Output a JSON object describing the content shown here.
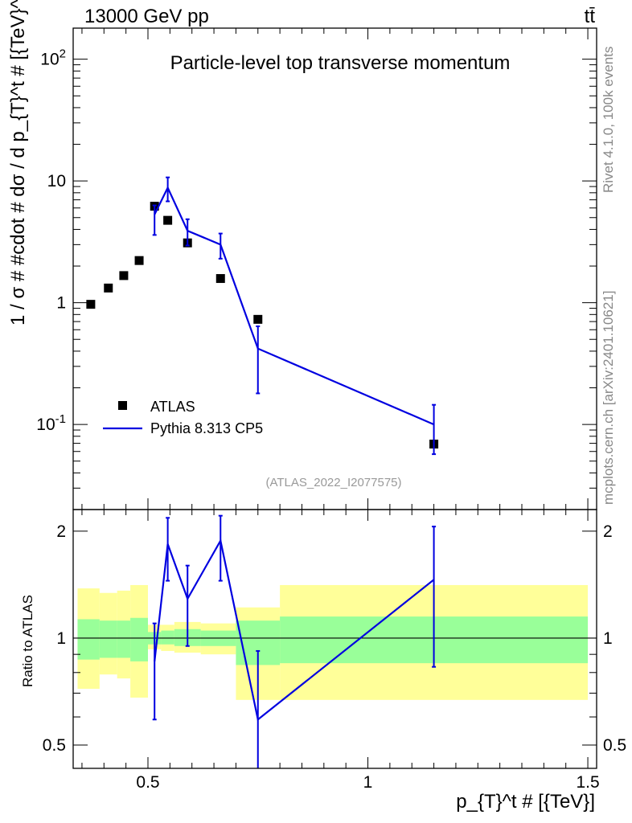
{
  "header": {
    "energy": "13000 GeV pp",
    "process": "tt̄",
    "side_rivet": "Rivet 4.1.0,  100k events",
    "side_url": "mcplots.cern.ch [arXiv:2401.10621]"
  },
  "chart_data": {
    "type": "scatter",
    "title": "Particle-level top transverse momentum",
    "analysis_id": "(ATLAS_2022_I2077575)",
    "xlabel": "p_{T}^t # [{TeV}]",
    "ylabel": "1 / σ # #cdot # dσ / d p_{T}^t # [{TeV}^-1]",
    "ratio_ylabel": "Ratio to ATLAS",
    "xlim": [
      0.33,
      1.52
    ],
    "ylim_log": [
      0.02,
      180
    ],
    "ratio_ylim": [
      0.43,
      2.3
    ],
    "x_ticks": [
      "0.5",
      "1",
      "1.5"
    ],
    "y_ticks": [
      "10^-1",
      "1",
      "10",
      "10^2"
    ],
    "ratio_ticks": [
      "0.5",
      "1",
      "2"
    ],
    "legend": [
      "ATLAS",
      "Pythia 8.313 CP5"
    ],
    "atlas": {
      "x": [
        0.37,
        0.41,
        0.445,
        0.48,
        0.515,
        0.545,
        0.59,
        0.665,
        0.75,
        1.15
      ],
      "xlow": [
        0.34,
        0.39,
        0.43,
        0.46,
        0.5,
        0.53,
        0.56,
        0.62,
        0.7,
        0.8
      ],
      "xhigh": [
        0.39,
        0.43,
        0.46,
        0.5,
        0.53,
        0.56,
        0.62,
        0.7,
        0.8,
        1.5
      ],
      "y": [
        0.97,
        1.32,
        1.67,
        2.22,
        6.2,
        4.75,
        3.1,
        1.58,
        0.73,
        0.069
      ],
      "band_stat_low": [
        0.87,
        0.88,
        0.88,
        0.86,
        0.96,
        0.96,
        0.95,
        0.95,
        0.84,
        0.85
      ],
      "band_stat_high": [
        1.13,
        1.12,
        1.12,
        1.14,
        1.04,
        1.05,
        1.06,
        1.05,
        1.12,
        1.15
      ],
      "band_tot_low": [
        0.72,
        0.79,
        0.77,
        0.68,
        0.93,
        0.92,
        0.91,
        0.9,
        0.67,
        0.67
      ],
      "band_tot_high": [
        1.38,
        1.34,
        1.36,
        1.41,
        1.09,
        1.09,
        1.11,
        1.1,
        1.22,
        1.41
      ]
    },
    "pythia": {
      "x": [
        0.515,
        0.545,
        0.59,
        0.665,
        0.75,
        1.15
      ],
      "y": [
        5.3,
        8.8,
        3.9,
        3.0,
        0.42,
        0.1
      ],
      "y_low": [
        3.6,
        6.8,
        2.95,
        2.3,
        0.18,
        0.057
      ],
      "y_high": [
        6.3,
        10.7,
        4.85,
        3.7,
        0.64,
        0.145
      ],
      "ratio": [
        0.86,
        1.84,
        1.29,
        1.88,
        0.59,
        1.46
      ],
      "ratio_low": [
        0.59,
        1.45,
        0.95,
        1.45,
        0.25,
        0.83
      ],
      "ratio_high": [
        1.1,
        2.18,
        1.6,
        2.21,
        0.92,
        2.06
      ]
    },
    "colors": {
      "pythia": "#0000e0",
      "atlas": "#000000",
      "band_total": "#ffff99",
      "band_stat": "#99ff99"
    }
  }
}
